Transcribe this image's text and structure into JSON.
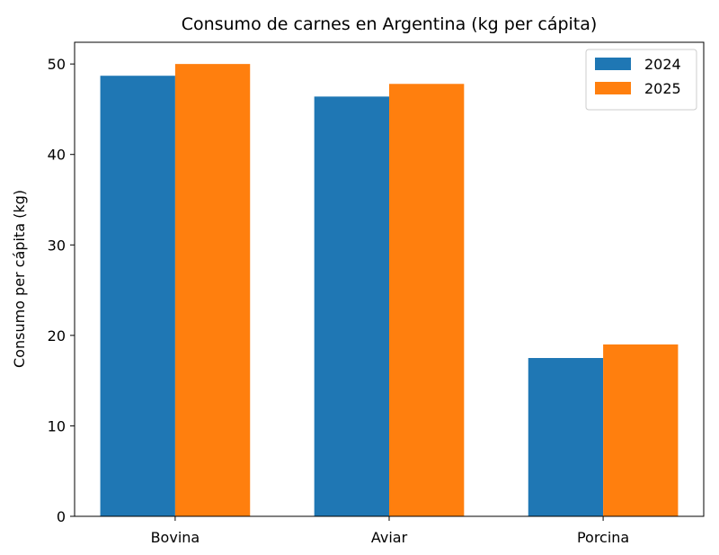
{
  "chart_data": {
    "type": "bar",
    "title": "Consumo de carnes en Argentina (kg per cápita)",
    "xlabel": "",
    "ylabel": "Consumo per cápita (kg)",
    "categories": [
      "Bovina",
      "Aviar",
      "Porcina"
    ],
    "series": [
      {
        "name": "2024",
        "color": "#1f77b4",
        "values": [
          48.7,
          46.4,
          17.5
        ]
      },
      {
        "name": "2025",
        "color": "#ff7f0e",
        "values": [
          50.0,
          47.8,
          19.0
        ]
      }
    ],
    "ylim": [
      0,
      52.4
    ],
    "yticks": [
      0,
      10,
      20,
      30,
      40,
      50
    ],
    "grid": false,
    "legend_position": "top-right"
  }
}
